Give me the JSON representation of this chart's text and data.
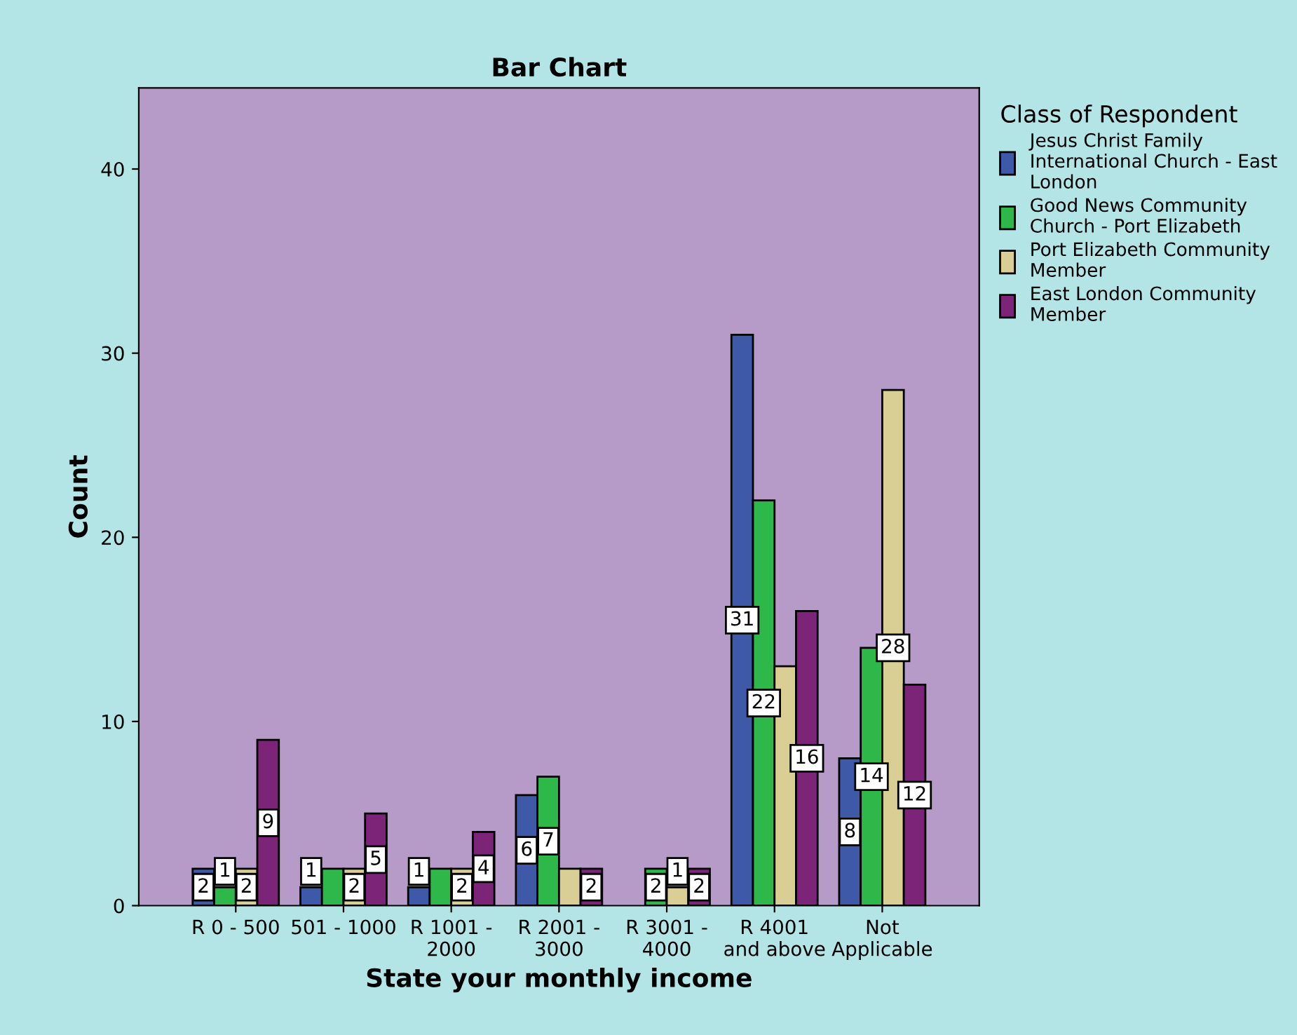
{
  "chart_data": {
    "type": "bar",
    "title": "Bar Chart",
    "xlabel": "State your monthly income",
    "ylabel": "Count",
    "legend_title": "Class of Respondent",
    "categories": [
      "R 0 - 500",
      "501 - 1000",
      "R 1001 -\n2000",
      "R 2001 -\n3000",
      "R 3001 -\n4000",
      "R 4001\nand above",
      "Not\nApplicable"
    ],
    "series": [
      {
        "name": "Jesus Christ Family\nInternational Church - East\nLondon",
        "color": "#3e59a8",
        "values": [
          2,
          1,
          1,
          6,
          null,
          31,
          8
        ],
        "value_labels": [
          "2",
          "1",
          "1",
          "6",
          null,
          "31",
          "8"
        ]
      },
      {
        "name": "Good News Community\nChurch - Port Elizabeth",
        "color": "#2fb84a",
        "values": [
          1,
          2,
          2,
          7,
          2,
          22,
          14
        ],
        "value_labels": [
          "1",
          null,
          null,
          "7",
          "2",
          "22",
          "14"
        ]
      },
      {
        "name": "Port Elizabeth Community\nMember",
        "color": "#d9cf94",
        "values": [
          2,
          2,
          2,
          2,
          1,
          13,
          28
        ],
        "value_labels": [
          "2",
          "2",
          "2",
          null,
          "1",
          null,
          "28"
        ]
      },
      {
        "name": "East London Community\nMember",
        "color": "#7b2478",
        "values": [
          9,
          5,
          4,
          2,
          2,
          16,
          12
        ],
        "value_labels": [
          "9",
          "5",
          "4",
          "2",
          "2",
          "16",
          "12"
        ]
      }
    ],
    "ylim": [
      0,
      44.4
    ],
    "yticks": [
      0,
      10,
      20,
      30,
      40
    ],
    "grid": false,
    "legend": "right"
  }
}
